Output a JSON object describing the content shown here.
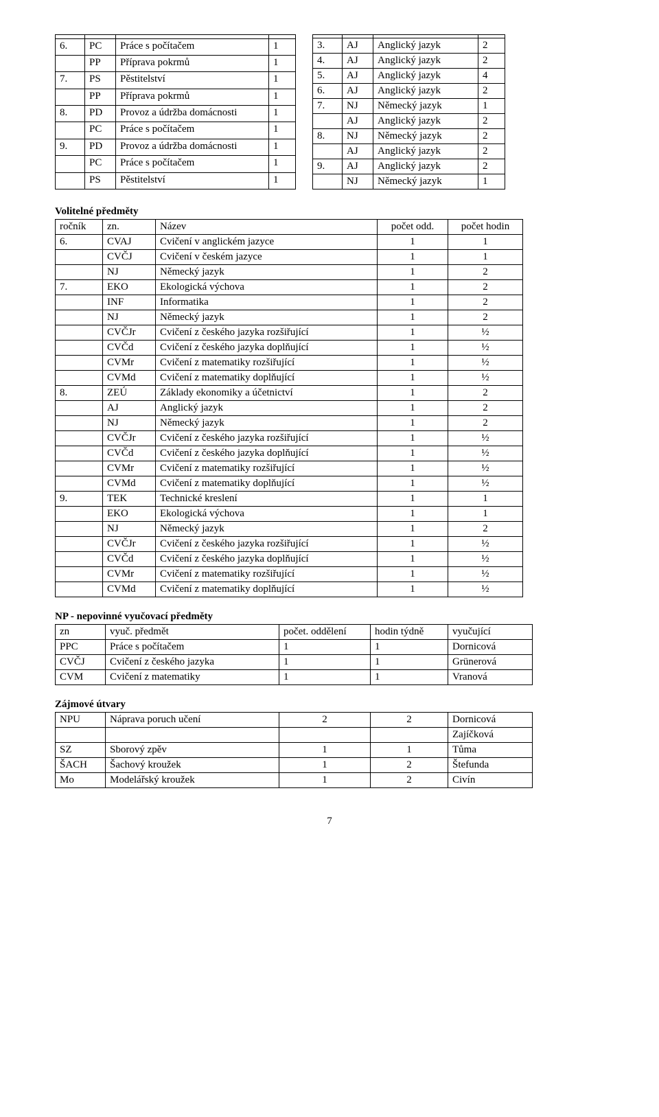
{
  "topLeft": {
    "rows": [
      [
        "6.",
        "PC",
        "Práce s počítačem",
        "1"
      ],
      [
        "",
        "PP",
        "Příprava pokrmů",
        "1"
      ],
      [
        "7.",
        "PS",
        "Pěstitelství",
        "1"
      ],
      [
        "",
        "PP",
        "Příprava pokrmů",
        "1"
      ],
      [
        "8.",
        "PD",
        "Provoz a údržba domácnosti",
        "1"
      ],
      [
        "",
        "PC",
        "Práce s počítačem",
        "1"
      ],
      [
        "9.",
        "PD",
        "Provoz a údržba domácnosti",
        "1"
      ],
      [
        "",
        "PC",
        "Práce s počítačem",
        "1"
      ],
      [
        "",
        "PS",
        "Pěstitelství",
        "1"
      ]
    ]
  },
  "topRight": {
    "rows": [
      [
        "3.",
        "AJ",
        "Anglický jazyk",
        "2"
      ],
      [
        "4.",
        "AJ",
        "Anglický jazyk",
        "2"
      ],
      [
        "5.",
        "AJ",
        "Anglický jazyk",
        "4"
      ],
      [
        "6.",
        "AJ",
        "Anglický jazyk",
        "2"
      ],
      [
        "7.",
        "NJ",
        "Německý jazyk",
        "1"
      ],
      [
        "",
        "AJ",
        "Anglický jazyk",
        "2"
      ],
      [
        "8.",
        "NJ",
        "Německý jazyk",
        "2"
      ],
      [
        "",
        "AJ",
        "Anglický jazyk",
        "2"
      ],
      [
        "9.",
        "AJ",
        "Anglický jazyk",
        "2"
      ],
      [
        "",
        "NJ",
        "Německý jazyk",
        "1"
      ]
    ]
  },
  "volit": {
    "heading": "Volitelné předměty",
    "header": [
      "ročník",
      "zn.",
      "Název",
      "počet odd.",
      "počet hodin"
    ],
    "rows": [
      [
        "6.",
        "CVAJ",
        "Cvičení v anglickém jazyce",
        "1",
        "1"
      ],
      [
        "",
        "CVČJ",
        "Cvičení v českém jazyce",
        "1",
        "1"
      ],
      [
        "",
        "NJ",
        "Německý jazyk",
        "1",
        "2"
      ],
      [
        "7.",
        "EKO",
        "Ekologická výchova",
        "1",
        "2"
      ],
      [
        "",
        "INF",
        "Informatika",
        "1",
        "2"
      ],
      [
        "",
        "NJ",
        "Německý jazyk",
        "1",
        "2"
      ],
      [
        "",
        "CVČJr",
        "Cvičení z českého jazyka   rozšiřující",
        "1",
        "½"
      ],
      [
        "",
        "CVČd",
        "Cvičení z českého jazyka doplňující",
        "1",
        "½"
      ],
      [
        "",
        "CVMr",
        "Cvičení z matematiky rozšiřující",
        "1",
        "½"
      ],
      [
        "",
        "CVMd",
        "Cvičení z matematiky doplňující",
        "1",
        "½"
      ],
      [
        "8.",
        "ZEÚ",
        "Základy ekonomiky a účetnictví",
        "1",
        "2"
      ],
      [
        "",
        "AJ",
        "Anglický jazyk",
        "1",
        "2"
      ],
      [
        "",
        "NJ",
        "Německý jazyk",
        "1",
        "2"
      ],
      [
        "",
        "CVČJr",
        "Cvičení z českého jazyka   rozšiřující",
        "1",
        "½"
      ],
      [
        "",
        "CVČd",
        "Cvičení z českého jazyka doplňující",
        "1",
        "½"
      ],
      [
        "",
        "CVMr",
        "Cvičení z matematiky rozšiřující",
        "1",
        "½"
      ],
      [
        "",
        "CVMd",
        "Cvičení z matematiky doplňující",
        "1",
        "½"
      ],
      [
        "9.",
        "TEK",
        "Technické kreslení",
        "1",
        "1"
      ],
      [
        "",
        "EKO",
        "Ekologická výchova",
        "1",
        "1"
      ],
      [
        "",
        "NJ",
        "Německý jazyk",
        "1",
        "2"
      ],
      [
        "",
        "CVČJr",
        "Cvičení z českého jazyka   rozšiřující",
        "1",
        "½"
      ],
      [
        "",
        "CVČd",
        "Cvičení z českého jazyka doplňující",
        "1",
        "½"
      ],
      [
        "",
        "CVMr",
        "Cvičení z matematiky rozšiřující",
        "1",
        "½"
      ],
      [
        "",
        "CVMd",
        "Cvičení z matematiky doplňující",
        "1",
        "½"
      ]
    ]
  },
  "np": {
    "heading": "NP - nepovinné vyučovací předměty",
    "header": [
      "zn",
      "vyuč. předmět",
      "počet. oddělení",
      "hodin týdně",
      "vyučující"
    ],
    "rows": [
      [
        "PPC",
        "Práce s počítačem",
        "1",
        "1",
        "Dornicová"
      ],
      [
        "CVČJ",
        "Cvičení z  českého jazyka",
        "1",
        "1",
        "Grünerová"
      ],
      [
        "CVM",
        "Cvičení z  matematiky",
        "1",
        "1",
        "Vranová"
      ]
    ]
  },
  "zu": {
    "heading": "Zájmové útvary",
    "rows": [
      [
        "NPU",
        "Náprava poruch učení",
        "2",
        "2",
        "Dornicová"
      ],
      [
        "",
        "",
        "",
        "",
        "Zajíčková"
      ],
      [
        "SZ",
        " Sborový zpěv",
        "1",
        "1",
        "Tůma"
      ],
      [
        "ŠACH",
        "Šachový kroužek",
        "1",
        "2",
        "Štefunda"
      ],
      [
        "Mo",
        "Modelářský kroužek",
        "1",
        "2",
        "Civín"
      ]
    ]
  },
  "pageNumber": "7"
}
